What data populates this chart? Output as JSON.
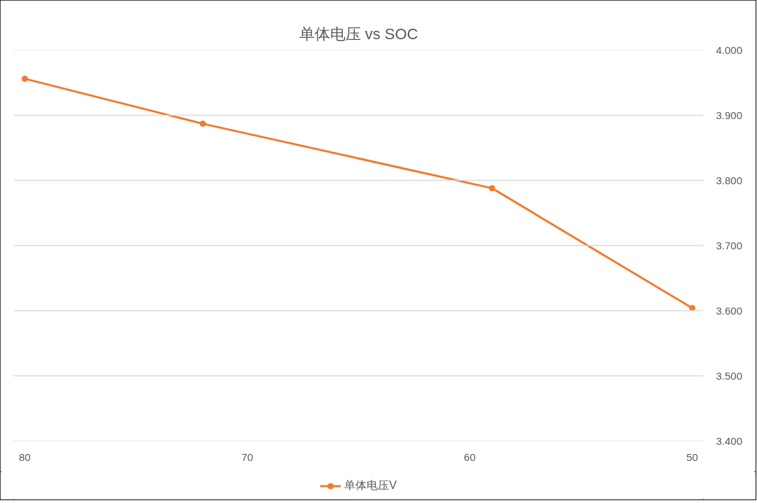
{
  "chart_data": {
    "type": "line",
    "title": "单体电压 vs SOC",
    "x": [
      80,
      72,
      59,
      50
    ],
    "series": [
      {
        "name": "单体电压V",
        "color": "#ed7d31",
        "values": [
          3.956,
          3.887,
          3.788,
          3.604
        ]
      }
    ],
    "xlim": [
      80.5,
      49.5
    ],
    "xticks": [
      80,
      70,
      60,
      50
    ],
    "ylim": [
      3.4,
      4.0
    ],
    "yticks": [
      {
        "value": 3.4,
        "label": "3.400"
      },
      {
        "value": 3.5,
        "label": "3.500"
      },
      {
        "value": 3.6,
        "label": "3.600"
      },
      {
        "value": 3.7,
        "label": "3.700"
      },
      {
        "value": 3.8,
        "label": "3.800"
      },
      {
        "value": 3.9,
        "label": "3.900"
      },
      {
        "value": 4.0,
        "label": "4.000"
      }
    ],
    "grid": "y",
    "legend": "bottom",
    "marker": "circle",
    "line_style": "solid"
  }
}
